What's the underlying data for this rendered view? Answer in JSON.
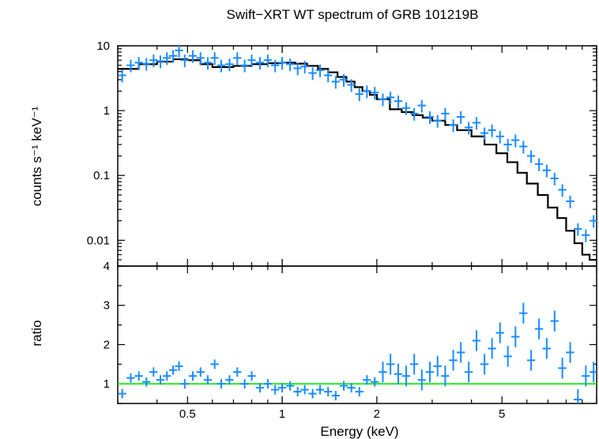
{
  "chart_data": [
    {
      "type": "scatter",
      "title": "Swift−XRT WT spectrum of GRB 101219B",
      "xlabel": "Energy (keV)",
      "ylabel": "counts s⁻¹ keV⁻¹",
      "x_scale": "log",
      "y_scale": "log",
      "xlim": [
        0.3,
        10
      ],
      "ylim": [
        0.004,
        10
      ],
      "x_ticks": [
        0.5,
        1,
        2,
        5
      ],
      "x_tick_labels": [
        "0.5",
        "1",
        "2",
        "5"
      ],
      "y_ticks": [
        0.01,
        0.1,
        1,
        10
      ],
      "y_tick_labels": [
        "0.01",
        "0.1",
        "1",
        "10"
      ],
      "y_extra_label": "4",
      "colors": {
        "data": "#1a8cff",
        "model": "#000000",
        "unity": "#22ee22"
      },
      "series": [
        {
          "values_note": "",
          "x": [
            0.31,
            0.33,
            0.35,
            0.37,
            0.39,
            0.41,
            0.43,
            0.45,
            0.47,
            0.49,
            0.52,
            0.55,
            0.58,
            0.61,
            0.64,
            0.68,
            0.72,
            0.76,
            0.8,
            0.85,
            0.9,
            0.95,
            1.0,
            1.06,
            1.12,
            1.18,
            1.25,
            1.32,
            1.4,
            1.48,
            1.57,
            1.66,
            1.76,
            1.86,
            1.97,
            2.09,
            2.21,
            2.34,
            2.48,
            2.63,
            2.78,
            2.95,
            3.12,
            3.3,
            3.5,
            3.7,
            3.92,
            4.15,
            4.4,
            4.65,
            4.93,
            5.22,
            5.52,
            5.85,
            6.19,
            6.56,
            6.94,
            7.35,
            7.78,
            8.24,
            8.72,
            9.24,
            9.78
          ],
          "y": [
            3.5,
            5.0,
            5.5,
            5.3,
            6.0,
            5.8,
            6.5,
            7.0,
            8.5,
            6.0,
            7.0,
            6.5,
            5.5,
            6.5,
            5.0,
            5.2,
            6.5,
            5.0,
            6.0,
            5.5,
            6.0,
            5.0,
            5.5,
            5.2,
            4.5,
            4.8,
            3.8,
            4.2,
            3.5,
            2.8,
            3.0,
            2.5,
            1.8,
            2.0,
            1.9,
            1.5,
            1.6,
            1.4,
            1.1,
            0.9,
            1.2,
            0.8,
            0.7,
            0.9,
            0.6,
            0.8,
            0.55,
            0.65,
            0.45,
            0.5,
            0.4,
            0.3,
            0.35,
            0.28,
            0.2,
            0.15,
            0.12,
            0.09,
            0.06,
            0.04,
            0.015,
            0.012,
            0.02
          ]
        }
      ],
      "model": {
        "x": [
          0.3,
          0.35,
          0.4,
          0.45,
          0.5,
          0.55,
          0.6,
          0.65,
          0.7,
          0.8,
          0.9,
          1.0,
          1.1,
          1.2,
          1.3,
          1.4,
          1.5,
          1.6,
          1.7,
          1.8,
          1.9,
          2.0,
          2.2,
          2.4,
          2.6,
          2.8,
          3.0,
          3.3,
          3.6,
          4.0,
          4.4,
          4.8,
          5.2,
          5.6,
          6.0,
          6.5,
          7.0,
          7.5,
          8.0,
          8.5,
          9.0,
          9.5,
          10.0
        ],
        "y": [
          4.4,
          5.2,
          5.7,
          6.2,
          6.0,
          5.2,
          4.7,
          4.7,
          4.9,
          5.2,
          5.4,
          5.5,
          5.3,
          4.9,
          4.4,
          3.9,
          3.3,
          2.8,
          2.3,
          2.0,
          1.75,
          1.5,
          1.05,
          0.95,
          0.85,
          0.78,
          0.7,
          0.6,
          0.5,
          0.4,
          0.3,
          0.22,
          0.16,
          0.11,
          0.075,
          0.05,
          0.032,
          0.022,
          0.014,
          0.009,
          0.006,
          0.005,
          0.005
        ]
      }
    },
    {
      "type": "scatter",
      "xlabel": "Energy (keV)",
      "ylabel": "ratio",
      "x_scale": "log",
      "y_scale": "linear",
      "xlim": [
        0.3,
        10
      ],
      "ylim": [
        0.5,
        4
      ],
      "y_ticks": [
        1,
        2,
        3
      ],
      "y_tick_labels": [
        "1",
        "2",
        "3"
      ],
      "reference_line": 1,
      "series": [
        {
          "x": [
            0.31,
            0.33,
            0.35,
            0.37,
            0.39,
            0.41,
            0.43,
            0.45,
            0.47,
            0.49,
            0.52,
            0.55,
            0.58,
            0.61,
            0.64,
            0.68,
            0.72,
            0.76,
            0.8,
            0.85,
            0.9,
            0.95,
            1.0,
            1.06,
            1.12,
            1.18,
            1.25,
            1.32,
            1.4,
            1.48,
            1.57,
            1.66,
            1.76,
            1.86,
            1.97,
            2.09,
            2.21,
            2.34,
            2.48,
            2.63,
            2.78,
            2.95,
            3.12,
            3.3,
            3.5,
            3.7,
            3.92,
            4.15,
            4.4,
            4.65,
            4.93,
            5.22,
            5.52,
            5.85,
            6.19,
            6.56,
            6.94,
            7.35,
            7.78,
            8.24,
            8.72,
            9.24,
            9.78
          ],
          "y": [
            0.75,
            1.15,
            1.2,
            1.05,
            1.3,
            1.1,
            1.2,
            1.35,
            1.45,
            1.0,
            1.2,
            1.3,
            1.1,
            1.5,
            1.0,
            1.1,
            1.3,
            1.0,
            1.2,
            0.9,
            1.0,
            0.85,
            0.9,
            0.95,
            0.8,
            0.85,
            0.75,
            0.85,
            0.8,
            0.7,
            0.95,
            0.9,
            0.8,
            1.1,
            1.05,
            1.3,
            1.5,
            1.25,
            1.2,
            1.5,
            1.1,
            1.3,
            1.45,
            1.2,
            1.6,
            1.8,
            1.3,
            2.1,
            1.5,
            1.9,
            2.3,
            1.7,
            2.2,
            2.8,
            1.6,
            2.4,
            1.9,
            2.6,
            1.4,
            1.8,
            0.6,
            1.2,
            1.3
          ]
        }
      ]
    }
  ]
}
